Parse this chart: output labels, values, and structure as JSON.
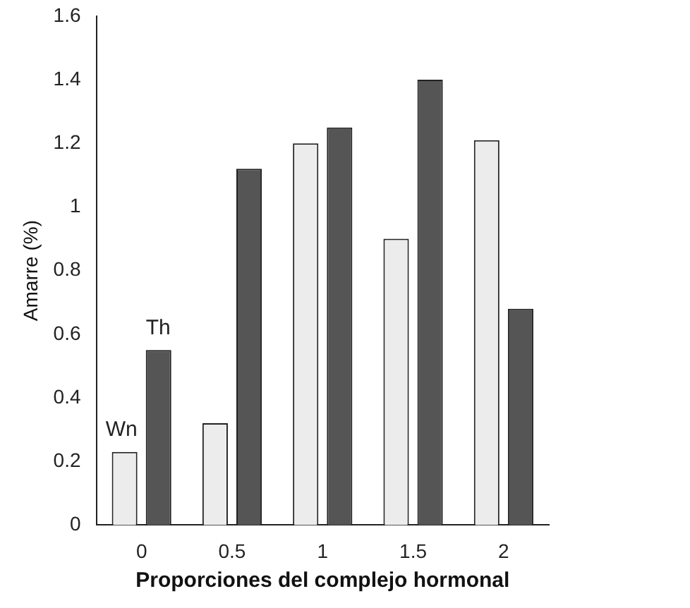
{
  "chart_data": {
    "type": "bar",
    "xlabel": "Proporciones del complejo hormonal",
    "ylabel": "Amarre (%)",
    "categories": [
      "0",
      "0.5",
      "1",
      "1.5",
      "2"
    ],
    "series": [
      {
        "name": "Wn",
        "color": "#ececec",
        "values": [
          0.23,
          0.32,
          1.2,
          0.9,
          1.21
        ]
      },
      {
        "name": "Th",
        "color": "#555555",
        "values": [
          0.55,
          1.12,
          1.25,
          1.4,
          0.68
        ]
      }
    ],
    "ylim": [
      0,
      1.6
    ],
    "yticks": [
      0,
      0.2,
      0.4,
      0.6,
      0.8,
      1,
      1.2,
      1.4,
      1.6
    ],
    "grid": false,
    "legend": false
  }
}
